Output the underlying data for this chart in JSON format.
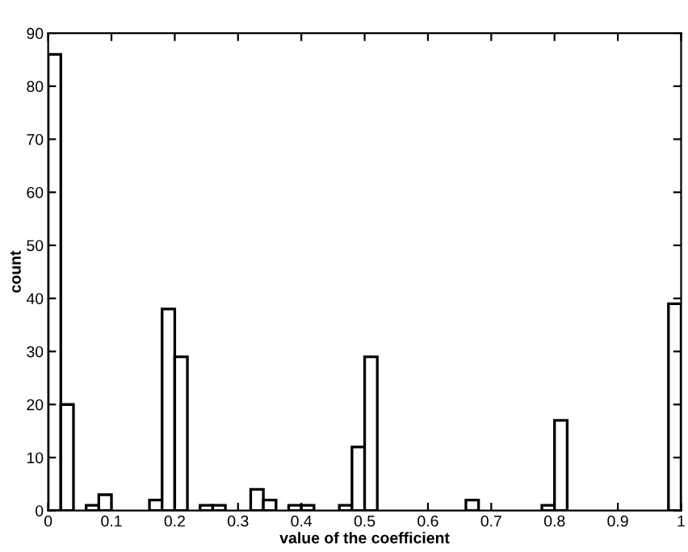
{
  "chart_data": {
    "type": "histogram",
    "xlabel": "value of the coefficient",
    "ylabel": "count",
    "bins": [
      0,
      0.02,
      0.04,
      0.06,
      0.08,
      0.1,
      0.12,
      0.14,
      0.16,
      0.18,
      0.2,
      0.22,
      0.24,
      0.26,
      0.28,
      0.3,
      0.32,
      0.34,
      0.36,
      0.38,
      0.4,
      0.42,
      0.44,
      0.46,
      0.48,
      0.5,
      0.52,
      0.54,
      0.56,
      0.58,
      0.6,
      0.62,
      0.64,
      0.66,
      0.68,
      0.7,
      0.72,
      0.74,
      0.76,
      0.78,
      0.8,
      0.82,
      0.84,
      0.86,
      0.88,
      0.9,
      0.92,
      0.94,
      0.96,
      0.98,
      1
    ],
    "values": [
      86,
      20,
      0,
      1,
      3,
      0,
      0,
      0,
      2,
      38,
      29,
      0,
      1,
      1,
      0,
      0,
      4,
      2,
      0,
      1,
      1,
      0,
      0,
      1,
      12,
      29,
      0,
      0,
      0,
      0,
      0,
      0,
      0,
      2,
      0,
      0,
      0,
      0,
      0,
      1,
      17,
      0,
      0,
      0,
      0,
      0,
      0,
      0,
      0,
      39
    ],
    "color": "#ffffff",
    "xlim": [
      0,
      1
    ],
    "ylim": [
      0,
      90
    ],
    "xticks": [
      0,
      0.1,
      0.2,
      0.3,
      0.4,
      0.5,
      0.6,
      0.7,
      0.8,
      0.9,
      1
    ],
    "yticks": [
      0,
      10,
      20,
      30,
      40,
      50,
      60,
      70,
      80,
      90
    ],
    "grid": false
  }
}
